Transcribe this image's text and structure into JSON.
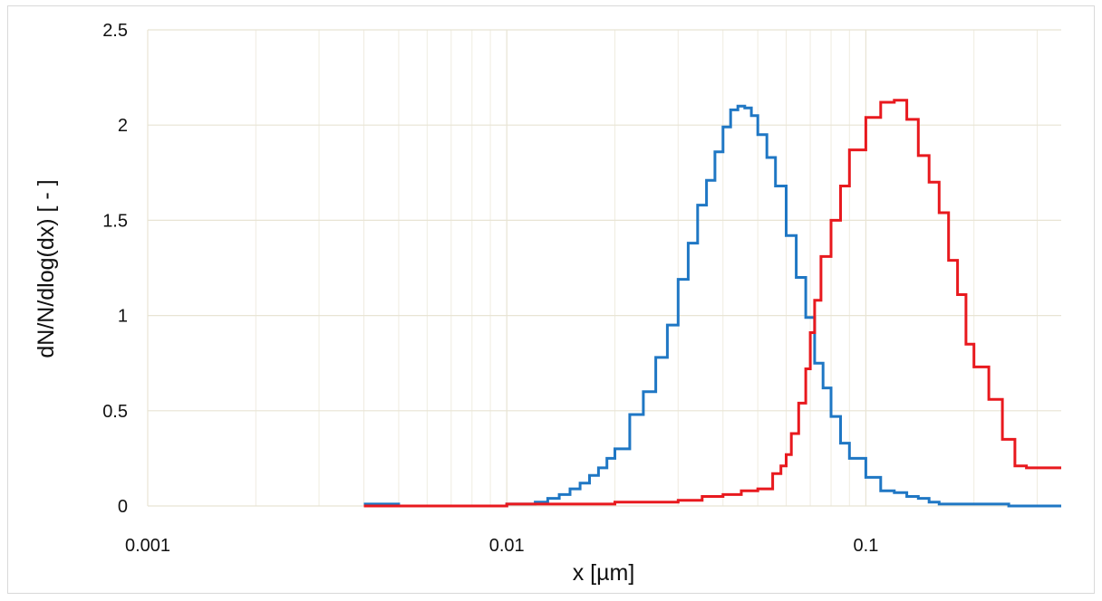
{
  "chart_data": {
    "type": "line",
    "step": true,
    "xscale": "log",
    "xlim": [
      0.001,
      0.35
    ],
    "ylim": [
      0,
      2.5
    ],
    "xticks": [
      0.001,
      0.01,
      0.1
    ],
    "xtick_labels": [
      "0.001",
      "0.01",
      "0.1"
    ],
    "yticks": [
      0,
      0.5,
      1,
      1.5,
      2,
      2.5
    ],
    "ytick_labels": [
      "0",
      "0.5",
      "1",
      "1.5",
      "2",
      "2.5"
    ],
    "xlabel": "x [µm]",
    "ylabel": "dN/N/dlog(dx)  [ - ]",
    "grid": true,
    "legend": false,
    "series": [
      {
        "color": "#1f77c4",
        "x": [
          0.004,
          0.005,
          0.006,
          0.007,
          0.008,
          0.009,
          0.01,
          0.011,
          0.012,
          0.013,
          0.014,
          0.015,
          0.016,
          0.017,
          0.018,
          0.019,
          0.02,
          0.022,
          0.024,
          0.026,
          0.028,
          0.03,
          0.032,
          0.034,
          0.036,
          0.038,
          0.04,
          0.042,
          0.044,
          0.046,
          0.048,
          0.05,
          0.053,
          0.056,
          0.06,
          0.064,
          0.068,
          0.072,
          0.076,
          0.08,
          0.085,
          0.09,
          0.1,
          0.11,
          0.12,
          0.13,
          0.14,
          0.15,
          0.16,
          0.2,
          0.25,
          0.3,
          0.35
        ],
        "values": [
          0.01,
          0.0,
          0.0,
          0.0,
          0.0,
          0.0,
          0.01,
          0.01,
          0.02,
          0.04,
          0.06,
          0.09,
          0.12,
          0.16,
          0.2,
          0.25,
          0.3,
          0.48,
          0.6,
          0.78,
          0.95,
          1.19,
          1.38,
          1.58,
          1.71,
          1.86,
          1.99,
          2.08,
          2.1,
          2.09,
          2.05,
          1.95,
          1.83,
          1.68,
          1.42,
          1.2,
          0.99,
          0.75,
          0.62,
          0.47,
          0.33,
          0.25,
          0.15,
          0.08,
          0.07,
          0.05,
          0.04,
          0.02,
          0.01,
          0.01,
          0.0,
          0.0,
          0.0
        ]
      },
      {
        "color": "#e8191e",
        "x": [
          0.004,
          0.005,
          0.006,
          0.007,
          0.008,
          0.009,
          0.01,
          0.012,
          0.014,
          0.016,
          0.018,
          0.02,
          0.025,
          0.03,
          0.035,
          0.04,
          0.045,
          0.05,
          0.055,
          0.058,
          0.06,
          0.062,
          0.065,
          0.068,
          0.07,
          0.072,
          0.075,
          0.08,
          0.085,
          0.09,
          0.1,
          0.11,
          0.12,
          0.13,
          0.14,
          0.15,
          0.16,
          0.17,
          0.18,
          0.19,
          0.2,
          0.22,
          0.24,
          0.26,
          0.28,
          0.3,
          0.32,
          0.35
        ],
        "values": [
          0.0,
          0.0,
          0.0,
          0.0,
          0.0,
          0.0,
          0.01,
          0.01,
          0.01,
          0.01,
          0.01,
          0.02,
          0.02,
          0.03,
          0.05,
          0.06,
          0.08,
          0.09,
          0.17,
          0.21,
          0.27,
          0.38,
          0.54,
          0.72,
          0.91,
          1.08,
          1.31,
          1.5,
          1.68,
          1.87,
          2.04,
          2.12,
          2.13,
          2.03,
          1.84,
          1.7,
          1.54,
          1.29,
          1.11,
          0.85,
          0.73,
          0.56,
          0.35,
          0.21,
          0.2,
          0.2,
          0.2,
          0.2
        ]
      }
    ]
  }
}
